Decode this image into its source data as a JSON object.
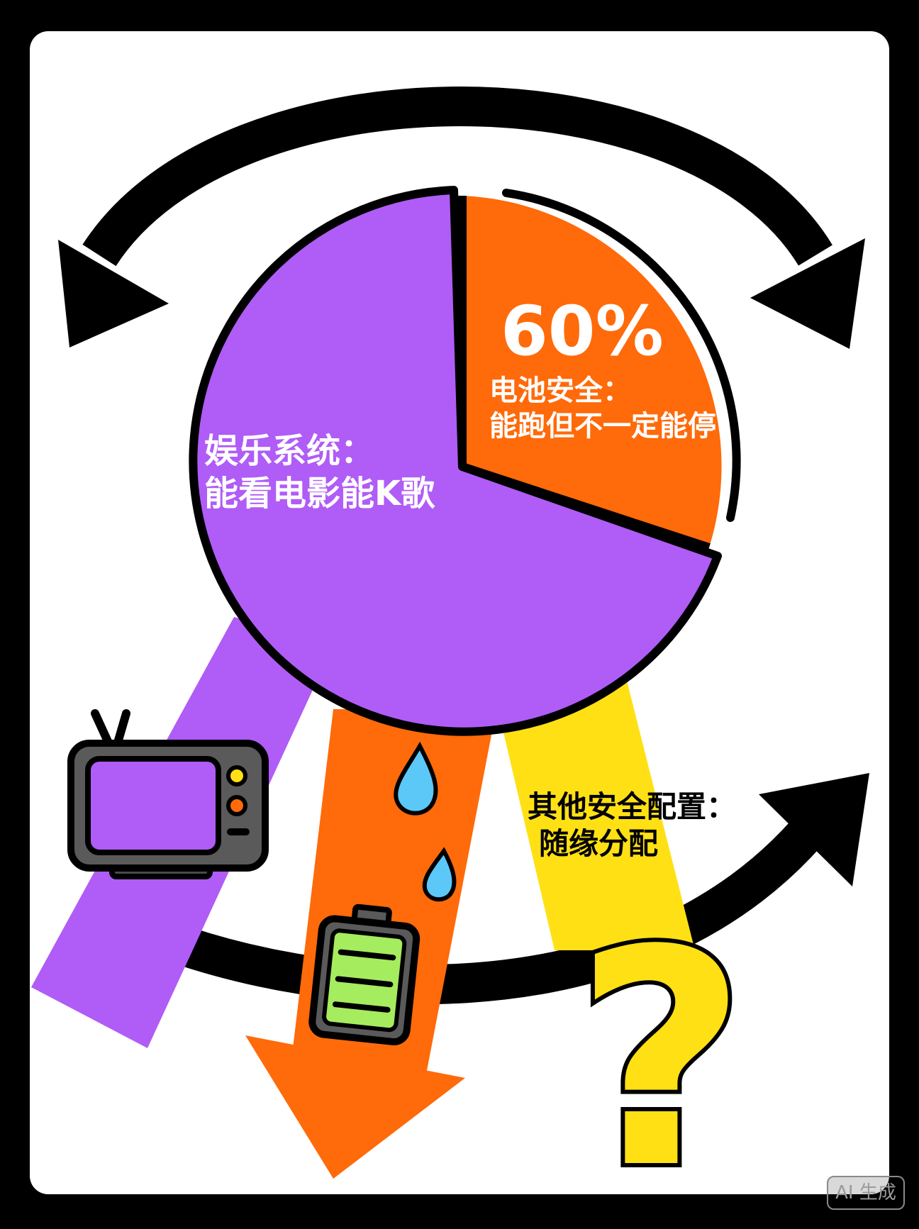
{
  "colors": {
    "frame": "#000000",
    "card": "#ffffff",
    "purple": "#b05cf6",
    "orange": "#ff6a0a",
    "yellow": "#ffe014",
    "battery_green": "#a5ec5f",
    "drop_blue": "#5cc8f7",
    "tv_gray": "#5a5a5a",
    "outline": "#000000"
  },
  "pie": {
    "percent_label": "60%",
    "orange_title": "电池安全：",
    "orange_desc": "能跑但不一定能停",
    "purple_title": "娱乐系统：",
    "purple_desc": "能看电影能K歌"
  },
  "other": {
    "title": "其他安全配置：",
    "desc": "随缘分配"
  },
  "question_mark": "?",
  "icons": {
    "tv": "tv-icon",
    "battery": "battery-icon",
    "drop": "water-drop-icon",
    "question": "question-mark-icon",
    "arrow": "curved-arrow-icon"
  },
  "watermark": "AI 生成"
}
